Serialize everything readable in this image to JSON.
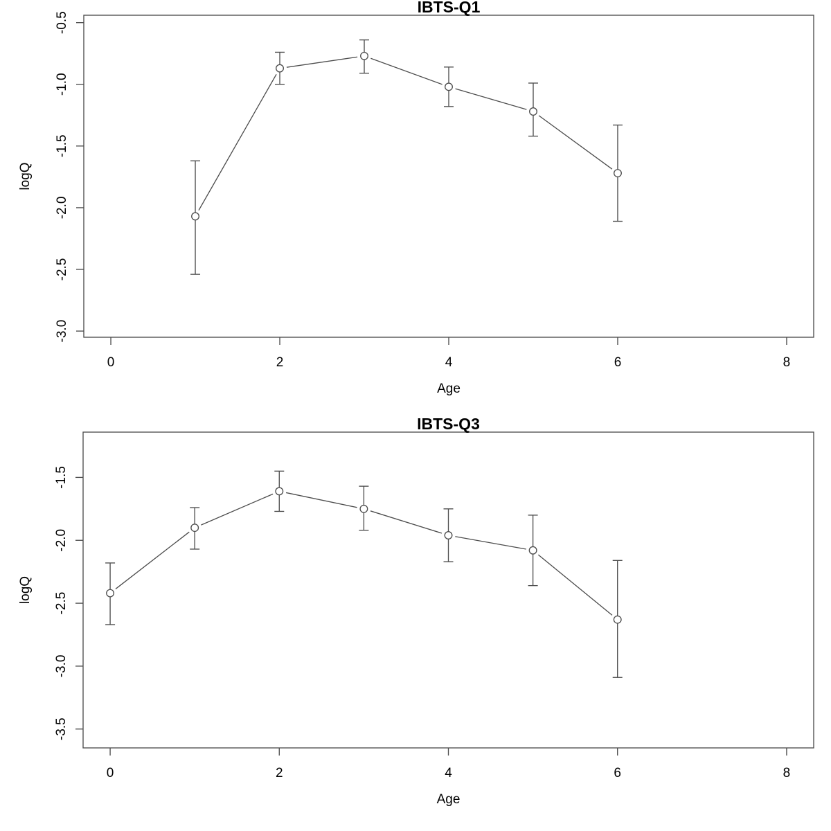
{
  "page": {
    "background": "#ffffff",
    "stroke_color": "#4d4d4d",
    "text_color": "#000000"
  },
  "chart_data": [
    {
      "type": "line",
      "title": "IBTS-Q1",
      "xlabel": "Age",
      "ylabel": "logQ",
      "marker": "open-circle",
      "error_bars": true,
      "grid": false,
      "legend_position": "none",
      "x": [
        1,
        2,
        3,
        4,
        5,
        6
      ],
      "y": [
        -2.07,
        -0.87,
        -0.77,
        -1.02,
        -1.22,
        -1.72
      ],
      "ci_upper": [
        -1.62,
        -0.74,
        -0.64,
        -0.86,
        -0.99,
        -1.33
      ],
      "ci_lower": [
        -2.54,
        -1.0,
        -0.91,
        -1.18,
        -1.42,
        -2.11
      ],
      "xticks": [
        0,
        2,
        4,
        6,
        8
      ],
      "xtick_labels": [
        "0",
        "2",
        "4",
        "6",
        "8"
      ],
      "yticks": [
        -0.5,
        -1.0,
        -1.5,
        -2.0,
        -2.5,
        -3.0
      ],
      "ytick_labels": [
        "-0.5",
        "-1.0",
        "-1.5",
        "-2.0",
        "-2.5",
        "-3.0"
      ],
      "xlim": [
        -0.32,
        8.32
      ],
      "ylim": [
        -3.05,
        -0.44
      ]
    },
    {
      "type": "line",
      "title": "IBTS-Q3",
      "xlabel": "Age",
      "ylabel": "logQ",
      "marker": "open-circle",
      "error_bars": true,
      "grid": false,
      "legend_position": "none",
      "x": [
        0,
        1,
        2,
        3,
        4,
        5,
        6
      ],
      "y": [
        -2.42,
        -1.9,
        -1.61,
        -1.75,
        -1.96,
        -2.08,
        -2.63
      ],
      "ci_upper": [
        -2.18,
        -1.74,
        -1.45,
        -1.57,
        -1.75,
        -1.8,
        -2.16
      ],
      "ci_lower": [
        -2.67,
        -2.07,
        -1.77,
        -1.92,
        -2.17,
        -2.36,
        -3.09
      ],
      "xticks": [
        0,
        2,
        4,
        6,
        8
      ],
      "xtick_labels": [
        "0",
        "2",
        "4",
        "6",
        "8"
      ],
      "yticks": [
        -1.5,
        -2.0,
        -2.5,
        -3.0,
        -3.5
      ],
      "ytick_labels": [
        "-1.5",
        "-2.0",
        "-2.5",
        "-3.0",
        "-3.5"
      ],
      "xlim": [
        -0.32,
        8.32
      ],
      "ylim": [
        -3.65,
        -1.14
      ]
    }
  ]
}
